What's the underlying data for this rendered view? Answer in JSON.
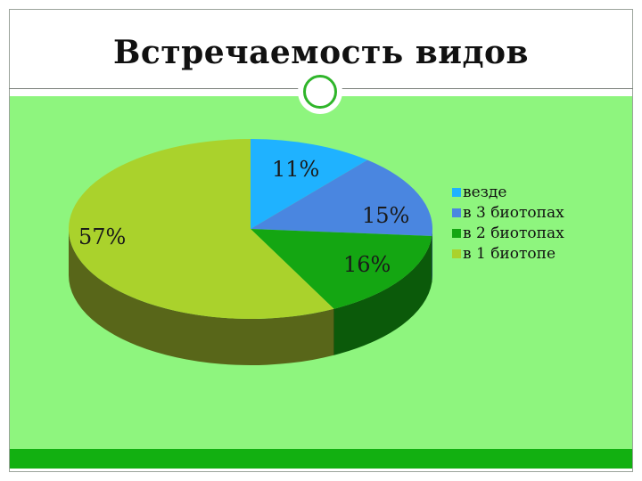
{
  "slide": {
    "title": "Встречаемость видов"
  },
  "chart_data": {
    "type": "pie",
    "style": "3d",
    "title": "",
    "categories": [
      "везде",
      "в 3 биотопах",
      "в 2 биотопах",
      "в 1 биотопе"
    ],
    "values": [
      11,
      15,
      16,
      57
    ],
    "labels": [
      "11%",
      "15%",
      "16%",
      "57%"
    ],
    "colors": [
      "#1fb2ff",
      "#4a86e0",
      "#14a612",
      "#aad22c"
    ],
    "side_colors": [
      "#0e6f9e",
      "#2a4f92",
      "#0b5a0a",
      "#586619"
    ],
    "legend_position": "right"
  }
}
